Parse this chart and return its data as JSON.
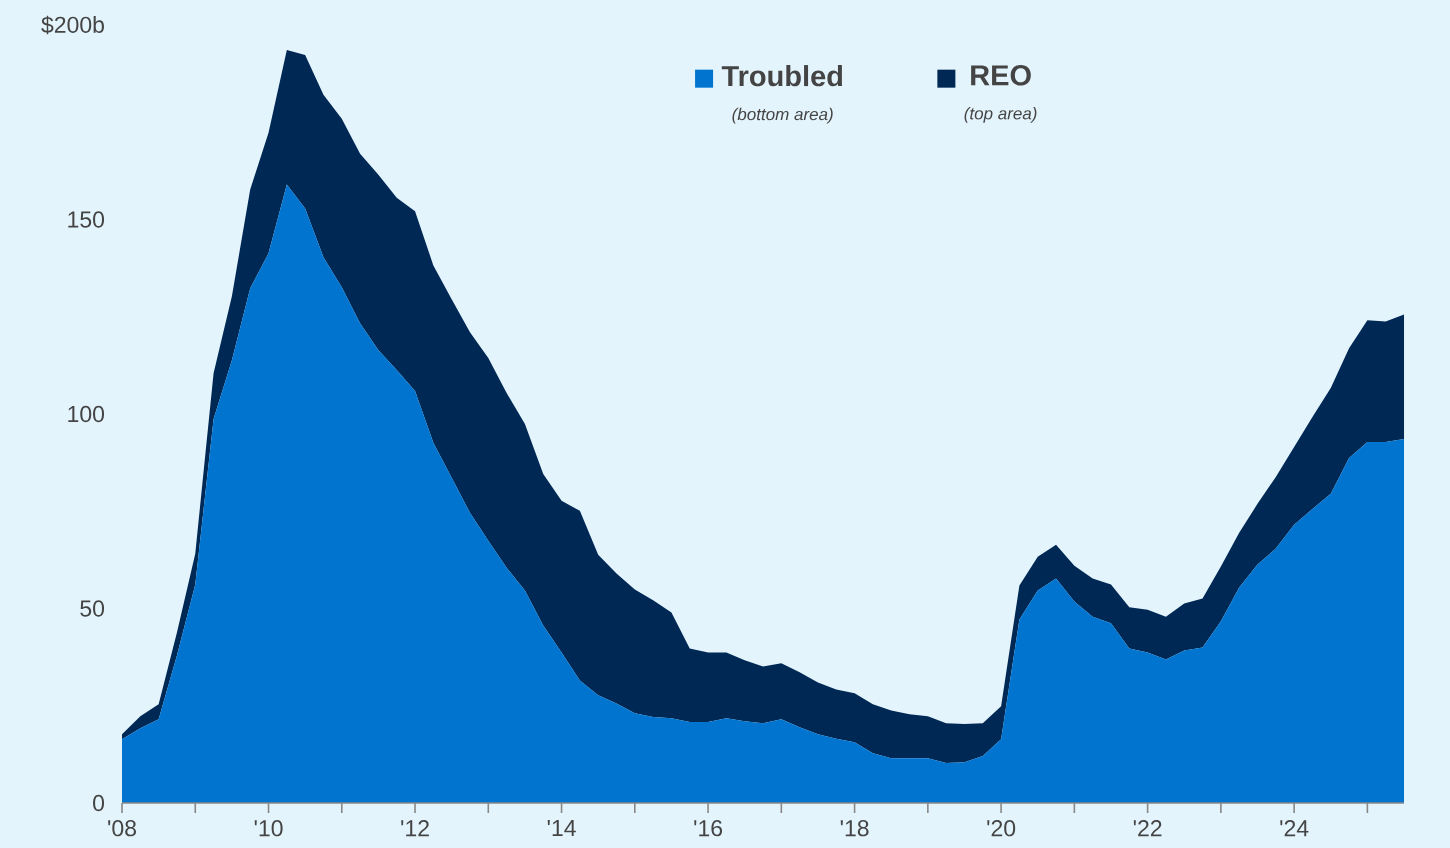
{
  "chart_data": {
    "type": "area",
    "stacked": true,
    "x": [
      2008,
      2008.25,
      2008.5,
      2008.75,
      2009,
      2009.25,
      2009.5,
      2009.75,
      2010,
      2010.25,
      2010.5,
      2010.75,
      2011,
      2011.25,
      2011.5,
      2011.75,
      2012,
      2012.25,
      2012.5,
      2012.75,
      2013,
      2013.25,
      2013.5,
      2013.75,
      2014,
      2014.25,
      2014.5,
      2014.75,
      2015,
      2015.25,
      2015.5,
      2015.75,
      2016,
      2016.25,
      2016.5,
      2016.75,
      2017,
      2017.25,
      2017.5,
      2017.75,
      2018,
      2018.25,
      2018.5,
      2018.75,
      2019,
      2019.25,
      2019.5,
      2019.75,
      2020,
      2020.25,
      2020.5,
      2020.75,
      2021,
      2021.25,
      2021.5,
      2021.75,
      2022,
      2022.25,
      2022.5,
      2022.75,
      2023,
      2023.25,
      2023.5,
      2023.75,
      2024,
      2024.25,
      2024.5,
      2024.75,
      2025,
      2025.25,
      2025.5
    ],
    "series": [
      {
        "name": "Troubled",
        "color": "#0074cf",
        "values": [
          16.4,
          19.2,
          21.5,
          37.9,
          56.2,
          98.7,
          113.8,
          132.3,
          141.3,
          159.0,
          152.8,
          140.3,
          132.6,
          123.3,
          116.4,
          111.3,
          105.9,
          92.6,
          83.6,
          74.6,
          67.4,
          60.5,
          54.6,
          45.6,
          38.7,
          31.5,
          27.7,
          25.6,
          23.1,
          22.1,
          21.8,
          20.8,
          20.8,
          21.8,
          21.0,
          20.5,
          21.5,
          19.5,
          17.7,
          16.5,
          15.6,
          12.8,
          11.5,
          11.5,
          11.5,
          10.3,
          10.5,
          12.1,
          16.4,
          47.2,
          54.6,
          57.7,
          51.8,
          47.9,
          46.2,
          39.7,
          38.7,
          36.9,
          39.2,
          40.0,
          46.7,
          55.4,
          61.3,
          65.4,
          71.5,
          75.6,
          79.5,
          88.7,
          92.8,
          92.8,
          93.6
        ]
      },
      {
        "name": "REO",
        "color": "#002855",
        "values": [
          1.3,
          3.1,
          3.9,
          5.9,
          7.9,
          11.8,
          16.5,
          25.4,
          31.0,
          34.6,
          39.5,
          41.8,
          43.3,
          43.6,
          45.1,
          44.3,
          46.2,
          45.6,
          45.9,
          46.4,
          47.0,
          44.9,
          42.8,
          39.0,
          39.0,
          43.6,
          36.1,
          33.4,
          31.8,
          30.0,
          27.2,
          18.9,
          17.9,
          16.9,
          15.7,
          14.6,
          14.4,
          14.1,
          13.3,
          12.7,
          12.6,
          12.6,
          12.3,
          11.3,
          10.8,
          10.2,
          9.8,
          8.4,
          8.5,
          8.7,
          8.7,
          8.7,
          9.2,
          9.8,
          10.0,
          10.6,
          11.0,
          11.0,
          12.1,
          12.6,
          14.1,
          14.1,
          15.6,
          18.4,
          20.0,
          23.6,
          27.2,
          28.2,
          31.3,
          31.0,
          32.0
        ]
      }
    ],
    "xlim": [
      2008,
      2025.5
    ],
    "xticks": [
      {
        "value": 2008,
        "label": "'08"
      },
      {
        "value": 2009,
        "label": null
      },
      {
        "value": 2010,
        "label": "'10"
      },
      {
        "value": 2011,
        "label": null
      },
      {
        "value": 2012,
        "label": "'12"
      },
      {
        "value": 2013,
        "label": null
      },
      {
        "value": 2014,
        "label": "'14"
      },
      {
        "value": 2015,
        "label": null
      },
      {
        "value": 2016,
        "label": "'16"
      },
      {
        "value": 2017,
        "label": null
      },
      {
        "value": 2018,
        "label": "'18"
      },
      {
        "value": 2019,
        "label": null
      },
      {
        "value": 2020,
        "label": "'20"
      },
      {
        "value": 2021,
        "label": null
      },
      {
        "value": 2022,
        "label": "'22"
      },
      {
        "value": 2023,
        "label": null
      },
      {
        "value": 2024,
        "label": "'24"
      },
      {
        "value": 2025,
        "label": null
      }
    ],
    "ylim": [
      0,
      200
    ],
    "yticks": [
      0,
      50,
      100,
      150,
      {
        "value": 200,
        "label": "$200b"
      }
    ],
    "legend": "top",
    "annotations": [
      "(bottom area)",
      "(top area)"
    ]
  }
}
